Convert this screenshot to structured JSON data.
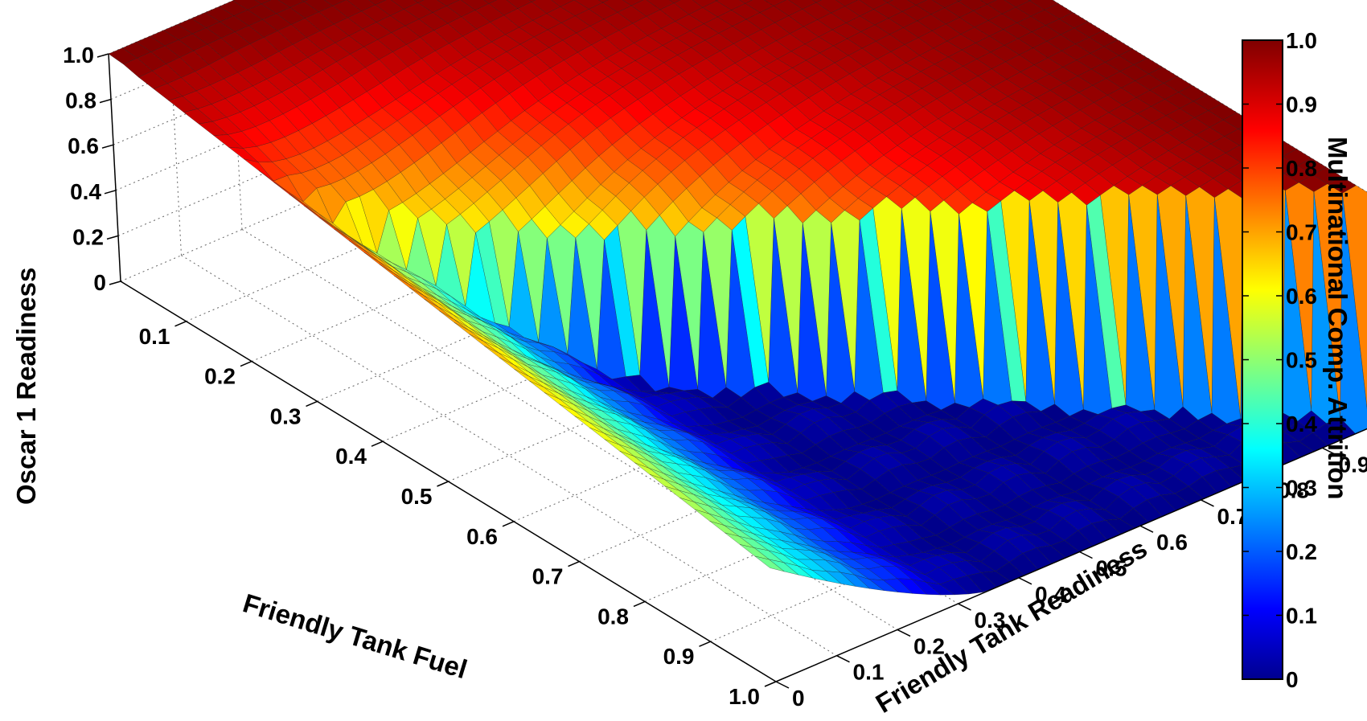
{
  "chart_data": {
    "type": "surface",
    "title": "",
    "xlabel": "Friendly Tank Fuel",
    "ylabel": "Friendly Tank Readiness",
    "zlabel": "Oscar 1 Readiness",
    "colorbar_label": "Multinational Comp. Attrition",
    "xlim": [
      0,
      1.0
    ],
    "ylim": [
      0,
      1.0
    ],
    "zlim": [
      0,
      1.0
    ],
    "x_ticks": [
      "0.1",
      "0.2",
      "0.3",
      "0.4",
      "0.5",
      "0.6",
      "0.7",
      "0.8",
      "0.9",
      "1.0"
    ],
    "y_ticks": [
      "0",
      "0.1",
      "0.2",
      "0.3",
      "0.4",
      "0.5",
      "0.6",
      "0.7",
      "0.8",
      "0.9"
    ],
    "z_ticks": [
      "0",
      "0.2",
      "0.4",
      "0.6",
      "0.8",
      "1.0"
    ],
    "colorbar_ticks": [
      "0",
      "0.1",
      "0.2",
      "0.3",
      "0.4",
      "0.5",
      "0.6",
      "0.7",
      "0.8",
      "0.9",
      "1.0"
    ],
    "colormap": "jet",
    "grid": true,
    "corner_values": {
      "fuel_0_readiness_0": 1.0,
      "fuel_0_readiness_1": 1.0,
      "fuel_1_readiness_0": 0.5,
      "fuel_1_readiness_1": 0.0
    }
  }
}
